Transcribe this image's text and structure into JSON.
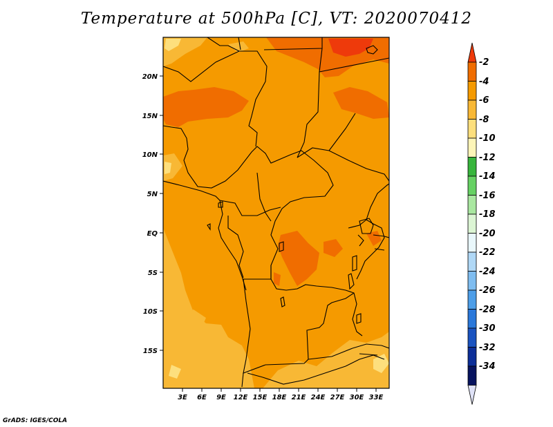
{
  "title": "Temperature at 500hPa [C], VT: 2020070412",
  "footer": "GrADS: IGES/COLA",
  "map": {
    "variable": "Temperature at 500hPa",
    "units": "C",
    "valid_time": "2020070412",
    "lon_range": [
      0,
      35
    ],
    "lat_range": [
      -20,
      24
    ],
    "x_ticks": [
      "3E",
      "6E",
      "9E",
      "12E",
      "15E",
      "18E",
      "21E",
      "24E",
      "27E",
      "30E",
      "33E"
    ],
    "y_ticks": [
      "20N",
      "15N",
      "10N",
      "5N",
      "EQ",
      "5S",
      "10S",
      "15S"
    ]
  },
  "colorbar": {
    "labels": [
      "-2",
      "-4",
      "-6",
      "-8",
      "-10",
      "-12",
      "-14",
      "-16",
      "-18",
      "-20",
      "-22",
      "-24",
      "-26",
      "-28",
      "-30",
      "-32",
      "-34"
    ],
    "colors": [
      "#ee3a0b",
      "#f06d00",
      "#f59a00",
      "#f8b835",
      "#fddf7d",
      "#fdf5b8",
      "#37b53c",
      "#66d163",
      "#a9e7a0",
      "#dcf5d4",
      "#e9f7fb",
      "#b0d8f6",
      "#7fbdf0",
      "#4d9ee8",
      "#2a78da",
      "#1a53c0",
      "#0c2e98",
      "#07135f",
      "#dfe2f7"
    ]
  }
}
